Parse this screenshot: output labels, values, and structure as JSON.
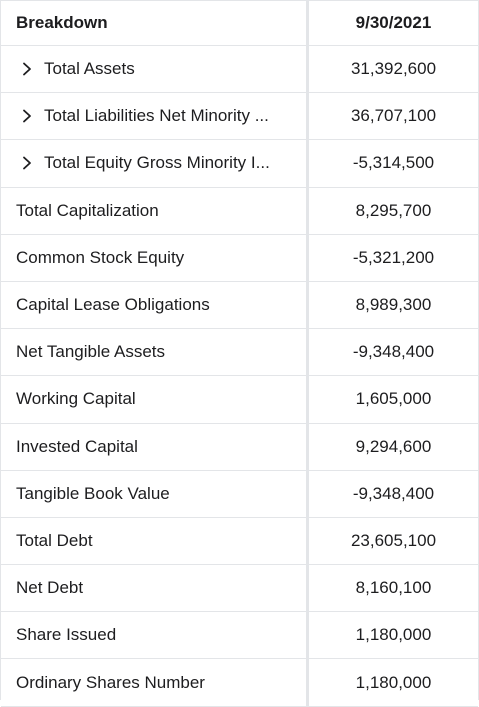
{
  "header": {
    "breakdown_label": "Breakdown",
    "date_label": "9/30/2021"
  },
  "rows": [
    {
      "label": "Total Assets",
      "value": "31,392,600",
      "expandable": true
    },
    {
      "label": "Total Liabilities Net Minority ...",
      "value": "36,707,100",
      "expandable": true
    },
    {
      "label": "Total Equity Gross Minority I...",
      "value": "-5,314,500",
      "expandable": true
    },
    {
      "label": "Total Capitalization",
      "value": "8,295,700",
      "expandable": false
    },
    {
      "label": "Common Stock Equity",
      "value": "-5,321,200",
      "expandable": false
    },
    {
      "label": "Capital Lease Obligations",
      "value": "8,989,300",
      "expandable": false
    },
    {
      "label": "Net Tangible Assets",
      "value": "-9,348,400",
      "expandable": false
    },
    {
      "label": "Working Capital",
      "value": "1,605,000",
      "expandable": false
    },
    {
      "label": "Invested Capital",
      "value": "9,294,600",
      "expandable": false
    },
    {
      "label": "Tangible Book Value",
      "value": "-9,348,400",
      "expandable": false
    },
    {
      "label": "Total Debt",
      "value": "23,605,100",
      "expandable": false
    },
    {
      "label": "Net Debt",
      "value": "8,160,100",
      "expandable": false
    },
    {
      "label": "Share Issued",
      "value": "1,180,000",
      "expandable": false
    },
    {
      "label": "Ordinary Shares Number",
      "value": "1,180,000",
      "expandable": false
    }
  ],
  "icons": {
    "expand": "chevron-right-icon"
  }
}
